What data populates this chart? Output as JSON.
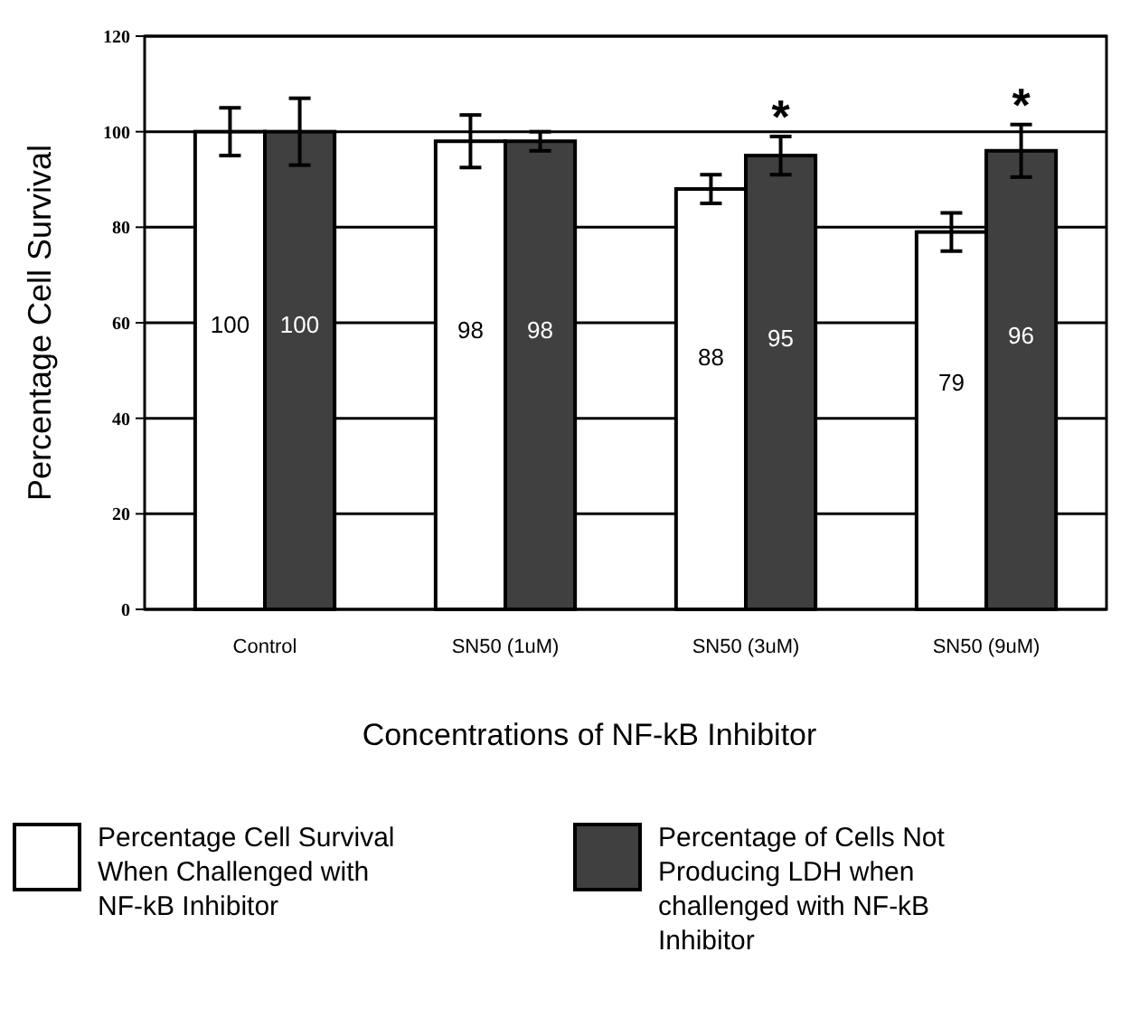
{
  "chart_data": {
    "type": "bar",
    "xlabel": "Concentrations of NF-kB Inhibitor",
    "ylabel": "Percentage Cell Survival",
    "categories": [
      "Control",
      "SN50 (1uM)",
      "SN50 (3uM)",
      "SN50 (9uM)"
    ],
    "series": [
      {
        "name": "Percentage Cell Survival When Challenged with NF-kB Inhibitor",
        "color": "#ffffff",
        "values": [
          100,
          98,
          88,
          79
        ],
        "errors": [
          5,
          5.5,
          3,
          4
        ]
      },
      {
        "name": "Percentage of Cells Not Producing LDH when challenged with NF-kB Inhibitor",
        "color": "#404040",
        "values": [
          100,
          98,
          95,
          96
        ],
        "errors": [
          7,
          2,
          4,
          5.5
        ]
      }
    ],
    "ylim": [
      0,
      120
    ],
    "yticks": [
      0,
      20,
      40,
      60,
      80,
      100,
      120
    ],
    "grid": "y",
    "legend": "bottom",
    "data_labels": true,
    "annotations": [
      "*",
      "*"
    ]
  }
}
